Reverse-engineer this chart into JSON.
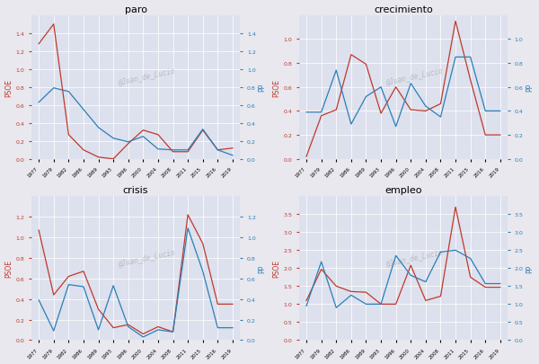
{
  "years": [
    1977,
    1979,
    1982,
    1986,
    1989,
    1993,
    1996,
    2000,
    2004,
    2008,
    2011,
    2015,
    2016,
    2019
  ],
  "paro": {
    "psoe": [
      1.28,
      1.5,
      0.27,
      0.1,
      0.02,
      0.0,
      0.17,
      0.32,
      0.27,
      0.08,
      0.08,
      0.32,
      0.1,
      0.12
    ],
    "pp": [
      0.63,
      0.79,
      0.75,
      0.55,
      0.35,
      0.23,
      0.19,
      0.25,
      0.11,
      0.1,
      0.1,
      0.33,
      0.1,
      0.04
    ]
  },
  "crecimiento": {
    "psoe": [
      0.02,
      0.36,
      0.41,
      0.87,
      0.79,
      0.38,
      0.6,
      0.41,
      0.4,
      0.46,
      1.15,
      0.66,
      0.2,
      0.2
    ],
    "pp": [
      0.39,
      0.39,
      0.74,
      0.29,
      0.52,
      0.6,
      0.27,
      0.63,
      0.44,
      0.35,
      0.85,
      0.85,
      0.4,
      0.4
    ]
  },
  "crisis": {
    "psoe": [
      1.07,
      0.44,
      0.62,
      0.67,
      0.3,
      0.12,
      0.15,
      0.06,
      0.13,
      0.08,
      1.22,
      0.94,
      0.35,
      0.35
    ],
    "pp": [
      0.39,
      0.09,
      0.54,
      0.52,
      0.1,
      0.53,
      0.13,
      0.03,
      0.1,
      0.08,
      1.09,
      0.67,
      0.12,
      0.12
    ]
  },
  "empleo": {
    "psoe": [
      1.1,
      1.97,
      1.5,
      1.35,
      1.33,
      1.0,
      1.0,
      2.08,
      1.1,
      1.22,
      3.7,
      1.75,
      1.47,
      1.47
    ],
    "pp": [
      0.95,
      2.18,
      0.9,
      1.25,
      1.0,
      1.0,
      2.35,
      1.8,
      1.62,
      2.45,
      2.5,
      2.27,
      1.57,
      1.57
    ]
  },
  "ylims": {
    "paro": [
      0.0,
      1.6
    ],
    "crecimiento": [
      0.0,
      1.2
    ],
    "crisis": [
      0.0,
      1.4
    ],
    "empleo": [
      0.0,
      4.0
    ]
  },
  "yticks": {
    "paro": [
      0.0,
      0.2,
      0.4,
      0.6,
      0.8,
      1.0,
      1.2,
      1.4
    ],
    "crecimiento": [
      0.0,
      0.2,
      0.4,
      0.6,
      0.8,
      1.0
    ],
    "crisis": [
      0.0,
      0.2,
      0.4,
      0.6,
      0.8,
      1.0,
      1.2
    ],
    "empleo": [
      0.0,
      0.5,
      1.0,
      1.5,
      2.0,
      2.5,
      3.0,
      3.5
    ]
  },
  "bg_color": "#dde0ed",
  "fig_color": "#e8e8ee",
  "psoe_color": "#c0392b",
  "pp_color": "#2980b9",
  "watermark": "@Juan_de_Lucio",
  "titles": [
    "paro",
    "crecimiento",
    "crisis",
    "empleo"
  ],
  "title_fontsize": 8
}
